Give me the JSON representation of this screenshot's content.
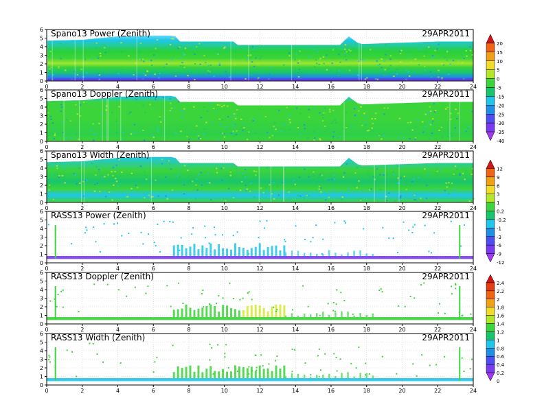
{
  "chart_data": [
    {
      "type": "heatmap",
      "title": "Spano13 Power (Zenith)",
      "date": "29APR2011",
      "x_ticks": [
        "0",
        "2",
        "4",
        "6",
        "8",
        "10",
        "12",
        "14",
        "16",
        "18",
        "20",
        "22",
        "24"
      ],
      "y_ticks": [
        "0",
        "1",
        "2",
        "3",
        "4",
        "5",
        "6"
      ],
      "xlim": [
        0,
        24
      ],
      "ylim": [
        0,
        6
      ],
      "colorbar": "a",
      "data": "dense",
      "top_height": [
        [
          0,
          4.7
        ],
        [
          2,
          4.8
        ],
        [
          4,
          5.2
        ],
        [
          6,
          5.3
        ],
        [
          7.2,
          5.3
        ],
        [
          7.5,
          4.6
        ],
        [
          10.6,
          4.6
        ],
        [
          10.7,
          4.2
        ],
        [
          16.5,
          4.2
        ],
        [
          17,
          5.2
        ],
        [
          17.6,
          4.3
        ],
        [
          22,
          4.6
        ],
        [
          24,
          4.6
        ]
      ],
      "gradient": [
        [
          0,
          "#6ad8f5"
        ],
        [
          0.1,
          "#1fc6ea"
        ],
        [
          0.35,
          "#28d03a"
        ],
        [
          0.5,
          "#3bd43a"
        ],
        [
          0.62,
          "#a0e62f"
        ],
        [
          0.7,
          "#3bd43a"
        ],
        [
          0.82,
          "#19c56c"
        ],
        [
          0.92,
          "#1f8fe6"
        ],
        [
          1,
          "#7020e6"
        ]
      ]
    },
    {
      "type": "heatmap",
      "title": "Spano13 Doppler (Zenith)",
      "date": "29APR2011",
      "x_ticks": [
        "0",
        "2",
        "4",
        "6",
        "8",
        "10",
        "12",
        "14",
        "16",
        "18",
        "20",
        "22",
        "24"
      ],
      "y_ticks": [
        "0",
        "1",
        "2",
        "3",
        "4",
        "5",
        "6"
      ],
      "xlim": [
        0,
        24
      ],
      "ylim": [
        0,
        6
      ],
      "colorbar": "a",
      "data": "dense",
      "top_height": [
        [
          0,
          4.7
        ],
        [
          2,
          4.8
        ],
        [
          4,
          5.2
        ],
        [
          6,
          5.3
        ],
        [
          7.2,
          5.3
        ],
        [
          7.5,
          4.6
        ],
        [
          10.6,
          4.6
        ],
        [
          10.7,
          4.2
        ],
        [
          16.5,
          4.2
        ],
        [
          17,
          5.2
        ],
        [
          17.6,
          4.3
        ],
        [
          22,
          4.6
        ],
        [
          24,
          4.6
        ]
      ],
      "gradient": [
        [
          0,
          "#1fc6ea"
        ],
        [
          0.15,
          "#3bd43a"
        ],
        [
          0.5,
          "#3bd43a"
        ],
        [
          0.85,
          "#2ed04a"
        ],
        [
          1,
          "#3bd43a"
        ]
      ]
    },
    {
      "type": "heatmap",
      "title": "Spano13 Width (Zenith)",
      "date": "29APR2011",
      "x_ticks": [
        "0",
        "2",
        "4",
        "6",
        "8",
        "10",
        "12",
        "14",
        "16",
        "18",
        "20",
        "22",
        "24"
      ],
      "y_ticks": [
        "0",
        "1",
        "2",
        "3",
        "4",
        "5",
        "6"
      ],
      "xlim": [
        0,
        24
      ],
      "ylim": [
        0,
        6
      ],
      "colorbar": "b",
      "data": "dense",
      "top_height": [
        [
          0,
          4.7
        ],
        [
          2,
          4.8
        ],
        [
          4,
          5.2
        ],
        [
          6,
          5.3
        ],
        [
          7.2,
          5.3
        ],
        [
          7.5,
          4.6
        ],
        [
          10.6,
          4.6
        ],
        [
          10.7,
          4.2
        ],
        [
          16.5,
          4.2
        ],
        [
          17,
          5.2
        ],
        [
          17.6,
          4.3
        ],
        [
          22,
          4.6
        ],
        [
          24,
          4.6
        ]
      ],
      "gradient": [
        [
          0,
          "#1fc6ea"
        ],
        [
          0.3,
          "#3bd43a"
        ],
        [
          0.55,
          "#19c56c"
        ],
        [
          0.7,
          "#3bd43a"
        ],
        [
          0.85,
          "#1fc6ea"
        ],
        [
          1,
          "#3bd43a"
        ]
      ]
    },
    {
      "type": "heatmap",
      "title": "RASS13 Power (Zenith)",
      "date": "29APR2011",
      "x_ticks": [
        "0",
        "2",
        "4",
        "6",
        "8",
        "10",
        "12",
        "14",
        "16",
        "18",
        "20",
        "22",
        "24"
      ],
      "y_ticks": [
        "0",
        "1",
        "2",
        "3",
        "4",
        "5",
        "6"
      ],
      "xlim": [
        0,
        24
      ],
      "ylim": [
        0,
        6
      ],
      "colorbar": "b",
      "data": "sparse",
      "base_color": "#7a3af0",
      "band_color": "#1fc6ea",
      "spike_color": "#3bd43a"
    },
    {
      "type": "heatmap",
      "title": "RASS13 Doppler (Zenith)",
      "date": "29APR2011",
      "x_ticks": [
        "0",
        "2",
        "4",
        "6",
        "8",
        "10",
        "12",
        "14",
        "16",
        "18",
        "20",
        "22",
        "24"
      ],
      "y_ticks": [
        "0",
        "1",
        "2",
        "3",
        "4",
        "5",
        "6"
      ],
      "xlim": [
        0,
        24
      ],
      "ylim": [
        0,
        6
      ],
      "colorbar": "c",
      "data": "sparse",
      "base_color": "#3bd43a",
      "band_color": "#3bd43a",
      "band_alt_color": "#d6e630",
      "spike_color": "#3bd43a"
    },
    {
      "type": "heatmap",
      "title": "RASS13 Width (Zenith)",
      "date": "29APR2011",
      "x_ticks": [
        "0",
        "2",
        "4",
        "6",
        "8",
        "10",
        "12",
        "14",
        "16",
        "18",
        "20",
        "22",
        "24"
      ],
      "y_ticks": [
        "0",
        "1",
        "2",
        "3",
        "4",
        "5",
        "6"
      ],
      "xlim": [
        0,
        24
      ],
      "ylim": [
        0,
        6
      ],
      "colorbar": "c",
      "data": "sparse",
      "base_color": "#1fc6ea",
      "band_color": "#3bd43a",
      "spike_color": "#3bd43a"
    }
  ],
  "colorbars": {
    "a": {
      "labels": [
        "20",
        "15",
        "10",
        "5",
        "0",
        "-5",
        "-15",
        "-20",
        "-25",
        "-30",
        "-35",
        "-40"
      ],
      "colors": [
        "#d21414",
        "#f06414",
        "#f0a014",
        "#f0dc28",
        "#b4e628",
        "#3bd43a",
        "#19c56c",
        "#1fc6ea",
        "#1f8fe6",
        "#4d4df0",
        "#7a3af0",
        "#a03af0"
      ]
    },
    "b": {
      "labels": [
        "12",
        "9",
        "6",
        "3",
        "1",
        "0.2",
        "-0.2",
        "-1",
        "-3",
        "-6",
        "-9",
        "-12"
      ],
      "colors": [
        "#d21414",
        "#f06414",
        "#f0a014",
        "#f0dc28",
        "#b4e628",
        "#3bd43a",
        "#19c56c",
        "#1fc6ea",
        "#1f8fe6",
        "#4d4df0",
        "#7a3af0",
        "#a03af0"
      ]
    },
    "c": {
      "labels": [
        "2.4",
        "2.2",
        "2",
        "1.8",
        "1.6",
        "1.4",
        "1.2",
        "1",
        "0.8",
        "0.6",
        "0.4",
        "0.2",
        "0"
      ],
      "colors": [
        "#d21414",
        "#e63c14",
        "#f06414",
        "#f0a014",
        "#f0dc28",
        "#b4e628",
        "#3bd43a",
        "#19c56c",
        "#1fc6ea",
        "#1f8fe6",
        "#4d4df0",
        "#7a3af0",
        "#a03af0"
      ]
    }
  }
}
